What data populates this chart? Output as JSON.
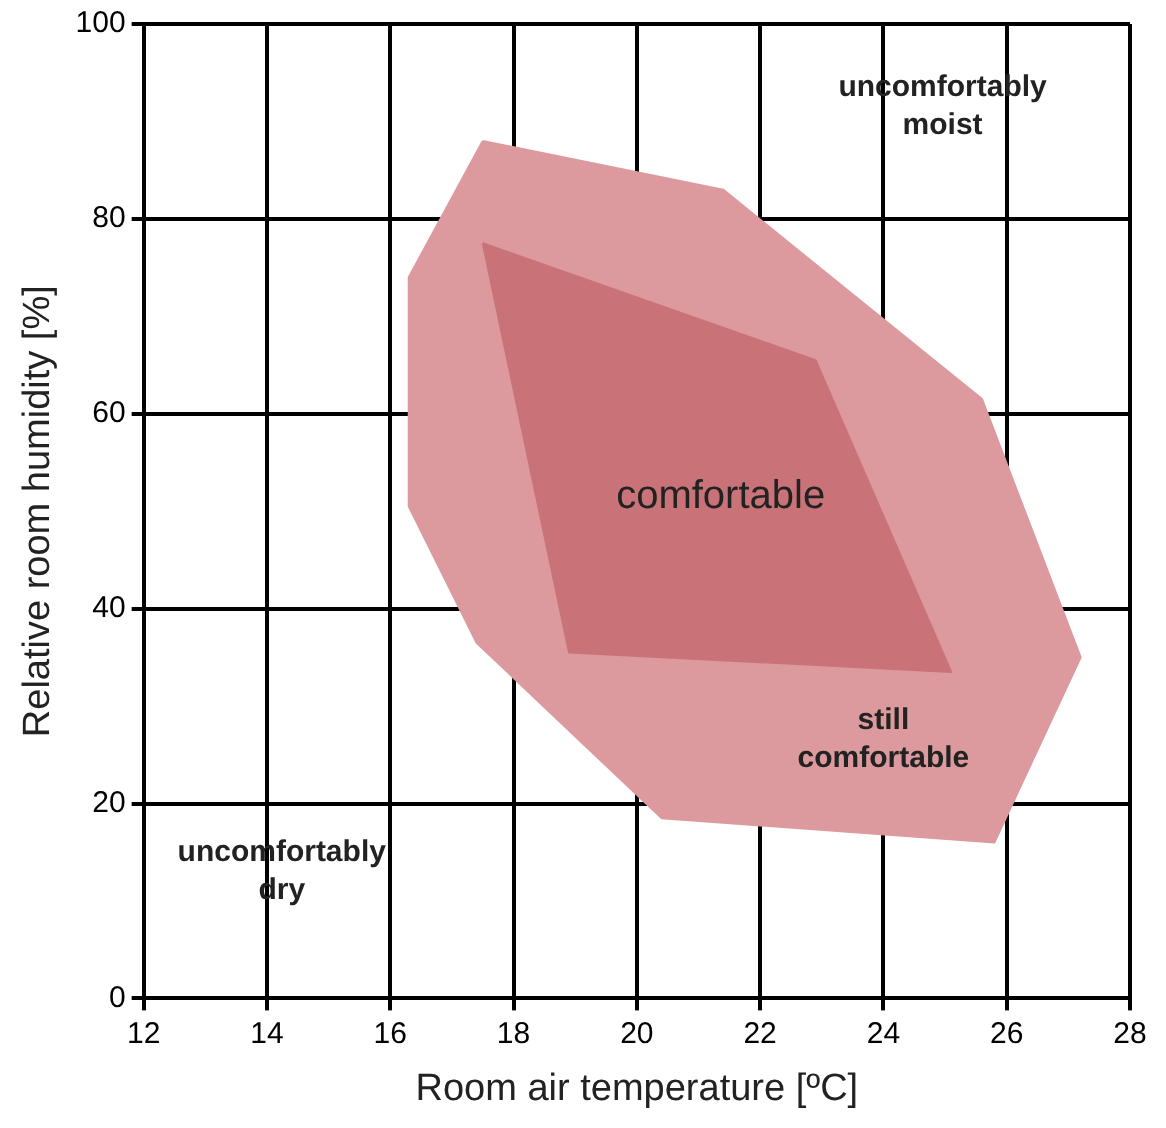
{
  "chart_data": {
    "type": "area",
    "xlabel": "Room air temperature [ºC]",
    "ylabel": "Relative room humidity [%]",
    "series": [
      {
        "color": "#dd9a9e",
        "x": [
          17.5,
          21.4,
          25.6,
          27.2,
          25.8,
          20.4,
          17.4,
          16.3,
          16.3,
          17.5
        ],
        "values": [
          88,
          83,
          61.5,
          35,
          16,
          18.5,
          36.5,
          50.5,
          74,
          88
        ]
      },
      {
        "color": "#c97379",
        "x": [
          17.5,
          22.9,
          25.1,
          18.9,
          17.5
        ],
        "values": [
          77.5,
          65.5,
          33.5,
          35.5,
          77.5
        ]
      }
    ],
    "xlim": [
      12,
      28
    ],
    "xticks": [
      12,
      14,
      16,
      18,
      20,
      22,
      24,
      26,
      28
    ],
    "ylim": [
      0,
      100
    ],
    "yticks": [
      0,
      20,
      40,
      60,
      80,
      100
    ],
    "grid": true,
    "legend": false,
    "marker": "none",
    "annotations": [
      "uncomfortably\nmoist",
      "comfortable",
      "still\ncomfortable",
      "uncomfortably\ndry"
    ]
  }
}
